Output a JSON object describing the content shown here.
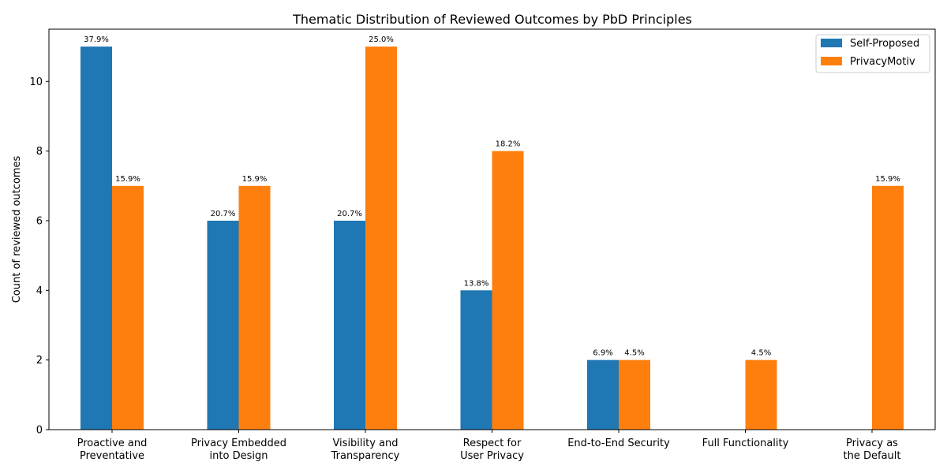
{
  "chart_data": {
    "type": "bar",
    "title": "Thematic Distribution of Reviewed Outcomes by PbD Principles",
    "xlabel": "",
    "ylabel": "Count of reviewed outcomes",
    "ylim": [
      0,
      11.5
    ],
    "yticks": [
      0,
      2,
      4,
      6,
      8,
      10
    ],
    "categories": [
      [
        "Proactive and",
        "Preventative"
      ],
      [
        "Privacy Embedded",
        "into Design"
      ],
      [
        "Visibility and",
        "Transparency"
      ],
      [
        "Respect for",
        "User Privacy"
      ],
      [
        "End-to-End Security"
      ],
      [
        "Full Functionality"
      ],
      [
        "Privacy as",
        "the Default"
      ]
    ],
    "series": [
      {
        "name": "Self-Proposed",
        "color": "#1f77b4",
        "values": [
          11,
          6,
          6,
          4,
          2,
          0,
          0
        ],
        "labels": [
          "37.9%",
          "20.7%",
          "20.7%",
          "13.8%",
          "6.9%",
          "",
          ""
        ]
      },
      {
        "name": "PrivacyMotiv",
        "color": "#ff7f0e",
        "values": [
          7,
          7,
          11,
          8,
          2,
          2,
          7
        ],
        "labels": [
          "15.9%",
          "15.9%",
          "25.0%",
          "18.2%",
          "4.5%",
          "4.5%",
          "15.9%"
        ]
      }
    ],
    "legend_position": "top-right",
    "grid": false
  }
}
